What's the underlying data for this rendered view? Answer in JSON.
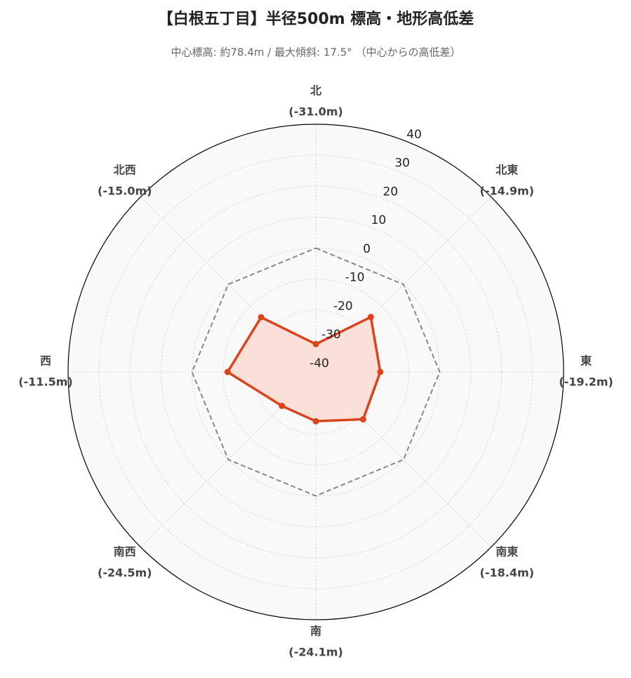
{
  "chart_data": {
    "type": "radar",
    "title": "【白根五丁目】半径500m 標高・地形高低差",
    "subtitle": "中心標高: 約78.4m / 最大傾斜: 17.5° （中心からの高低差）",
    "categories": [
      "北",
      "北東",
      "東",
      "南東",
      "南",
      "南西",
      "西",
      "北西"
    ],
    "values": [
      -31.0,
      -14.9,
      -19.2,
      -18.4,
      -24.1,
      -24.5,
      -11.5,
      -15.0
    ],
    "value_labels": [
      "(-31.0m)",
      "(-14.9m)",
      "(-19.2m)",
      "(-18.4m)",
      "(-24.1m)",
      "(-24.5m)",
      "(-11.5m)",
      "(-15.0m)"
    ],
    "color": "#d9441c",
    "fill_color": "#fadcd3",
    "reference_value": 0,
    "reference_color": "#888888",
    "rlim": [
      -40,
      40
    ],
    "rticks": [
      -40,
      -30,
      -20,
      -10,
      0,
      10,
      20,
      30,
      40
    ],
    "grid": true
  }
}
